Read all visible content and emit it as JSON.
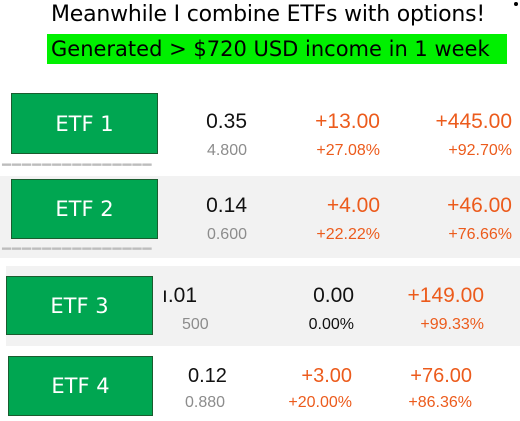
{
  "header": {
    "title": "Meanwhile I combine ETFs with options!",
    "highlight": "Generated > $720 USD income in 1 week",
    "highlight_color": "#00f000"
  },
  "colors": {
    "button": "#00a651",
    "gain": "#ec5b1c",
    "secondary": "#8c8c8c"
  },
  "rows": [
    {
      "label": "ETF 1",
      "price": "0.35",
      "cost": "4.800",
      "day_change": "+13.00",
      "day_pct": "+27.08%",
      "total_change": "+445.00",
      "total_pct": "+92.70%"
    },
    {
      "label": "ETF 2",
      "price": "0.14",
      "cost": "0.600",
      "day_change": "+4.00",
      "day_pct": "+22.22%",
      "total_change": "+46.00",
      "total_pct": "+76.66%"
    },
    {
      "label": "ETF 3",
      "price": "ı.01",
      "cost": "500",
      "day_change": "0.00",
      "day_pct": "0.00%",
      "total_change": "+149.00",
      "total_pct": "+99.33%"
    },
    {
      "label": "ETF 4",
      "price": "0.12",
      "cost": "0.880",
      "day_change": "+3.00",
      "day_pct": "+20.00%",
      "total_change": "+76.00",
      "total_pct": "+86.36%"
    }
  ]
}
